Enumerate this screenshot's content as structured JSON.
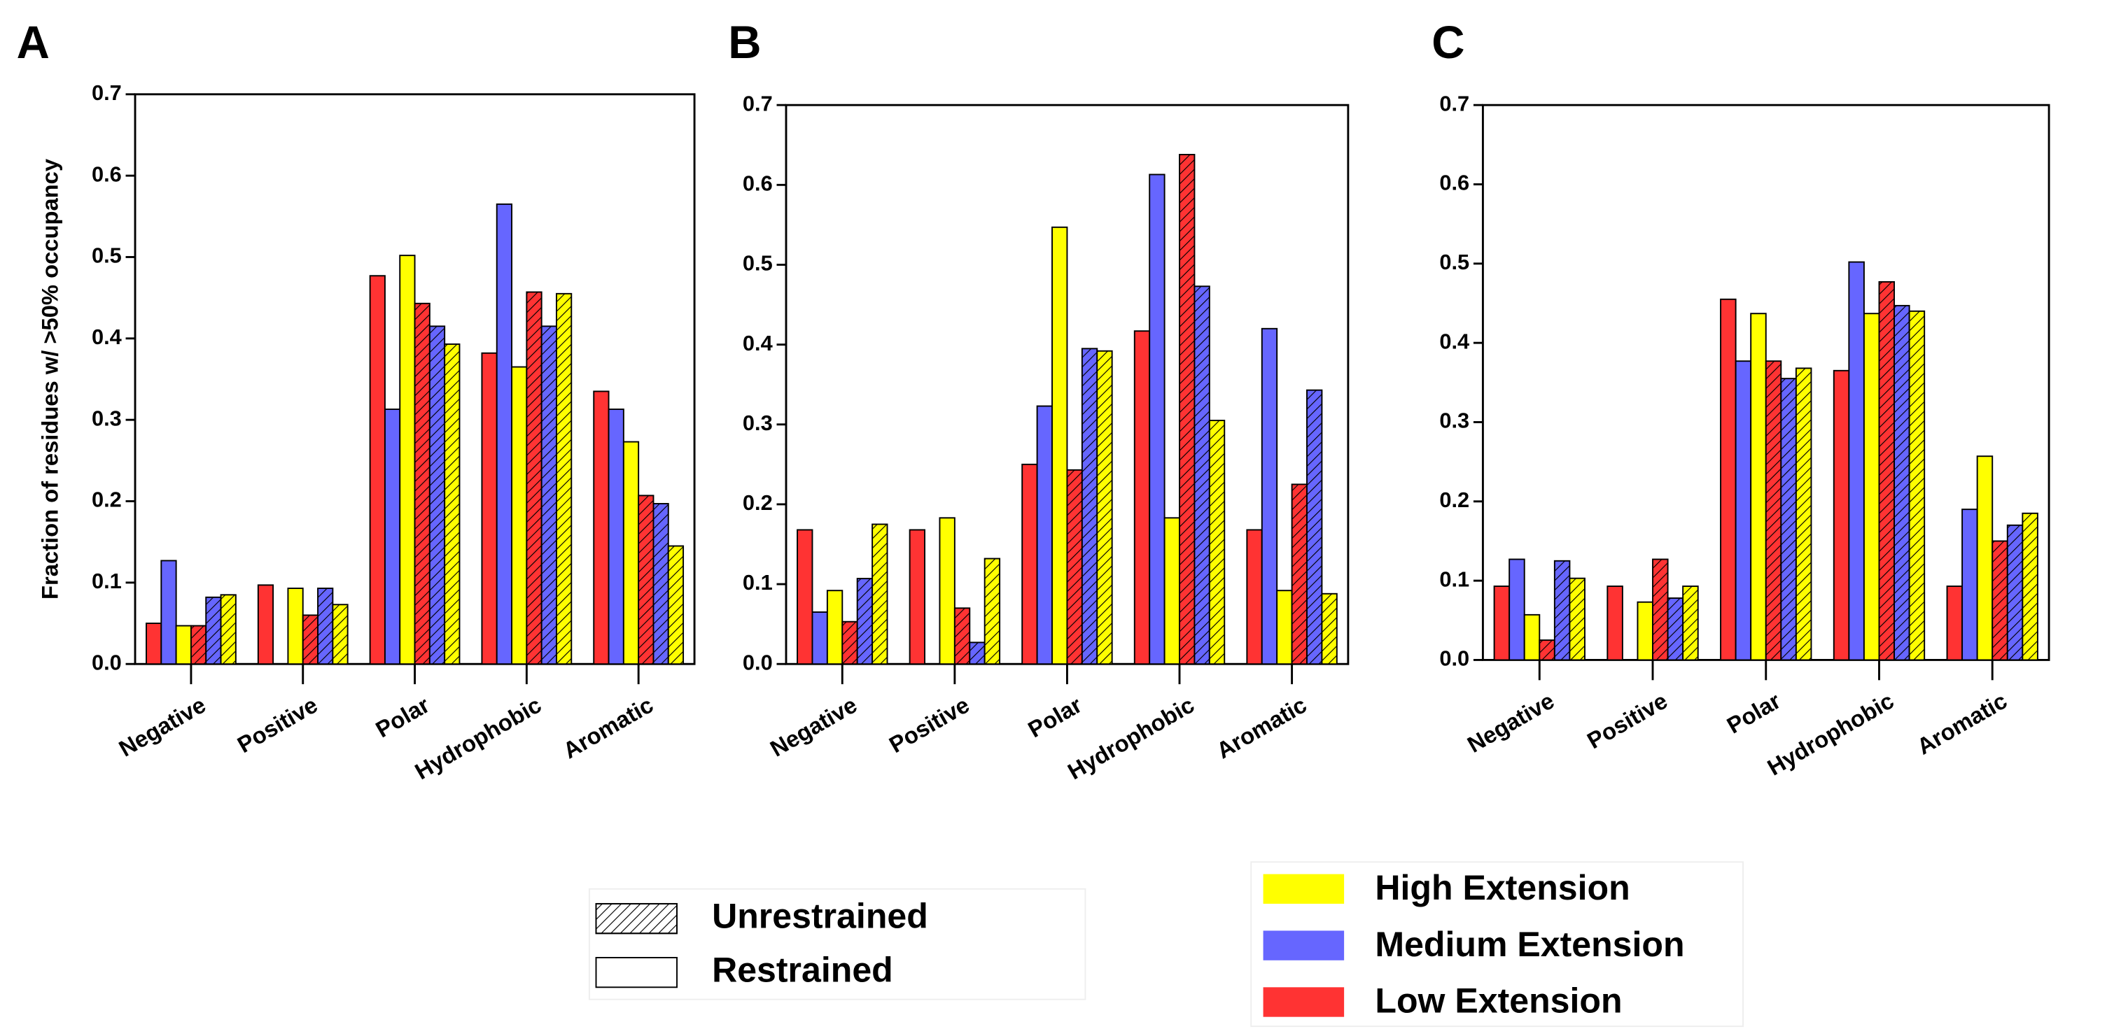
{
  "chart_data": [
    {
      "type": "bar",
      "panel": "A",
      "y_label": "Fraction of residues w/ >50% occupancy",
      "categories": [
        "Negative",
        "Positive",
        "Polar",
        "Hydrophobic",
        "Aromatic"
      ],
      "ylim": [
        0,
        0.7
      ],
      "yticks": [
        {
          "value": 0,
          "label": "0.0"
        },
        0.1,
        0.2,
        0.3,
        0.4,
        0.5,
        0.6,
        0.7
      ],
      "series": [
        {
          "color": "#ff3333",
          "hatched": false,
          "values": [
            0.05,
            0.097,
            0.477,
            0.382,
            0.335
          ]
        },
        {
          "color": "#6666ff",
          "hatched": false,
          "values": [
            0.127,
            0,
            0.313,
            0.565,
            0.313
          ]
        },
        {
          "color": "#ffff00",
          "hatched": false,
          "values": [
            0.047,
            0.093,
            0.502,
            0.365,
            0.273
          ]
        },
        {
          "color": "#ff3333",
          "hatched": true,
          "values": [
            0.047,
            0.06,
            0.443,
            0.457,
            0.207
          ]
        },
        {
          "color": "#6666ff",
          "hatched": true,
          "values": [
            0.082,
            0.093,
            0.415,
            0.415,
            0.197
          ]
        },
        {
          "color": "#ffff00",
          "hatched": true,
          "values": [
            0.085,
            0.073,
            0.393,
            0.455,
            0.145
          ]
        }
      ]
    },
    {
      "type": "bar",
      "panel": "B",
      "categories": [
        "Negative",
        "Positive",
        "Polar",
        "Hydrophobic",
        "Aromatic"
      ],
      "ylim": [
        0,
        0.7
      ],
      "yticks": [
        {
          "value": 0,
          "label": "0.0"
        },
        0.1,
        0.2,
        0.3,
        0.4,
        0.5,
        0.6,
        0.7
      ],
      "series": [
        {
          "color": "#ff3333",
          "hatched": false,
          "values": [
            0.168,
            0.168,
            0.25,
            0.417,
            0.168
          ]
        },
        {
          "color": "#6666ff",
          "hatched": false,
          "values": [
            0.065,
            0,
            0.323,
            0.613,
            0.42
          ]
        },
        {
          "color": "#ffff00",
          "hatched": false,
          "values": [
            0.092,
            0.183,
            0.547,
            0.183,
            0.092
          ]
        },
        {
          "color": "#ff3333",
          "hatched": true,
          "values": [
            0.053,
            0.07,
            0.243,
            0.638,
            0.225
          ]
        },
        {
          "color": "#6666ff",
          "hatched": true,
          "values": [
            0.107,
            0.027,
            0.395,
            0.473,
            0.343
          ]
        },
        {
          "color": "#ffff00",
          "hatched": true,
          "values": [
            0.175,
            0.132,
            0.392,
            0.305,
            0.088
          ]
        }
      ]
    },
    {
      "type": "bar",
      "panel": "C",
      "categories": [
        "Negative",
        "Positive",
        "Polar",
        "Hydrophobic",
        "Aromatic"
      ],
      "ylim": [
        0,
        0.7
      ],
      "yticks": [
        {
          "value": 0,
          "label": "0.0"
        },
        0.1,
        0.2,
        0.3,
        0.4,
        0.5,
        0.6,
        0.7
      ],
      "series": [
        {
          "color": "#ff3333",
          "hatched": false,
          "values": [
            0.093,
            0.093,
            0.455,
            0.365,
            0.093
          ]
        },
        {
          "color": "#6666ff",
          "hatched": false,
          "values": [
            0.127,
            0,
            0.377,
            0.502,
            0.19
          ]
        },
        {
          "color": "#ffff00",
          "hatched": false,
          "values": [
            0.057,
            0.073,
            0.437,
            0.437,
            0.257
          ]
        },
        {
          "color": "#ff3333",
          "hatched": true,
          "values": [
            0.025,
            0.127,
            0.377,
            0.477,
            0.15
          ]
        },
        {
          "color": "#6666ff",
          "hatched": true,
          "values": [
            0.125,
            0.078,
            0.355,
            0.447,
            0.17
          ]
        },
        {
          "color": "#ffff00",
          "hatched": true,
          "values": [
            0.103,
            0.093,
            0.368,
            0.44,
            0.185
          ]
        }
      ]
    }
  ],
  "legend": {
    "patterns": [
      {
        "label": "Unrestrained",
        "hatched": true
      },
      {
        "label": "Restrained",
        "hatched": false
      }
    ],
    "colors": [
      {
        "label": "High Extension",
        "color": "#ffff00"
      },
      {
        "label": "Medium Extension",
        "color": "#6666ff"
      },
      {
        "label": "Low Extension",
        "color": "#ff3333"
      }
    ]
  }
}
